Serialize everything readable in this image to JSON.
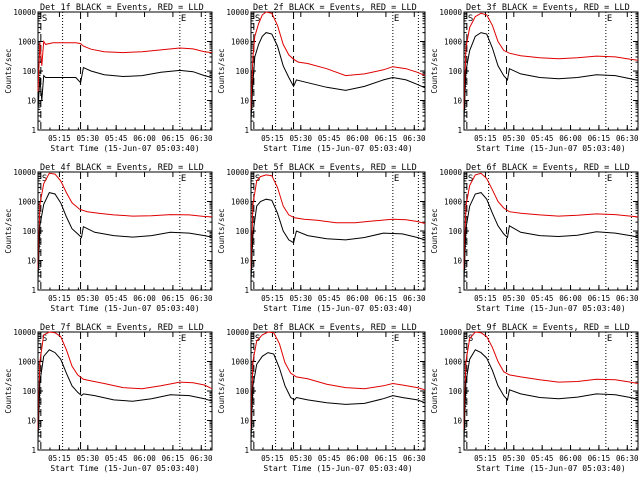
{
  "figure": {
    "start_time_label": "Start Time (15-Jun-07 05:03:40)",
    "ylabel": "Counts/sec",
    "x_tick_labels": [
      "05:15",
      "05:30",
      "05:45",
      "06:00",
      "06:15",
      "06:30"
    ],
    "y_tick_labels": [
      "1",
      "10",
      "100",
      "1000",
      "10000"
    ],
    "marker_top_left": "S",
    "marker_top_right": "E"
  },
  "colors": {
    "events": "#000000",
    "lld": "#e00000"
  },
  "chart_data": [
    {
      "type": "line",
      "title": "Det 1f BLACK = Events, RED = LLD",
      "xlabel": "Start Time (15-Jun-07 05:03:40)",
      "ylabel": "Counts/sec",
      "x_unit": "minutes after 05:03:40",
      "yscale": "log",
      "ylim": [
        1,
        10000
      ],
      "xlim": [
        0,
        92
      ],
      "dashed_lines": [
        1.5,
        22.5
      ],
      "dotted_lines": [
        13,
        75,
        88.5
      ],
      "series": [
        {
          "name": "LLD",
          "x": [
            0,
            1,
            2,
            3,
            4,
            8,
            14,
            20,
            22.5,
            24,
            28,
            35,
            45,
            55,
            65,
            75,
            82,
            88,
            92
          ],
          "y": [
            20,
            900,
            150,
            1000,
            800,
            900,
            900,
            900,
            850,
            700,
            550,
            450,
            420,
            450,
            520,
            600,
            560,
            450,
            420
          ]
        },
        {
          "name": "Events",
          "x": [
            0,
            1,
            2,
            3,
            4,
            8,
            14,
            20,
            22.5,
            24,
            28,
            35,
            45,
            55,
            65,
            75,
            82,
            88,
            92
          ],
          "y": [
            5,
            60,
            10,
            70,
            60,
            60,
            60,
            60,
            40,
            130,
            100,
            75,
            65,
            70,
            90,
            105,
            95,
            70,
            60
          ]
        }
      ]
    },
    {
      "type": "line",
      "title": "Det 2f BLACK = Events, RED = LLD",
      "xlabel": "Start Time (15-Jun-07 05:03:40)",
      "ylabel": "Counts/sec",
      "x_unit": "minutes after 05:03:40",
      "yscale": "log",
      "ylim": [
        1,
        10000
      ],
      "xlim": [
        0,
        92
      ],
      "dashed_lines": [
        1.5,
        22.5
      ],
      "dotted_lines": [
        13,
        75,
        88.5
      ],
      "series": [
        {
          "name": "LLD",
          "x": [
            0,
            1,
            2,
            4,
            6,
            8,
            11,
            14,
            17,
            20,
            22.5,
            25,
            30,
            40,
            50,
            60,
            70,
            75,
            82,
            88,
            92
          ],
          "y": [
            5,
            300,
            1500,
            4000,
            8000,
            10000,
            9000,
            3500,
            800,
            350,
            250,
            200,
            180,
            120,
            70,
            80,
            110,
            140,
            120,
            90,
            70
          ]
        },
        {
          "name": "Events",
          "x": [
            0,
            1,
            2,
            4,
            6,
            8,
            11,
            14,
            17,
            20,
            22.5,
            24,
            30,
            40,
            50,
            60,
            70,
            75,
            82,
            88,
            92
          ],
          "y": [
            2,
            40,
            300,
            800,
            1500,
            2000,
            1800,
            700,
            150,
            60,
            30,
            50,
            40,
            28,
            22,
            30,
            50,
            60,
            50,
            35,
            27
          ]
        }
      ]
    },
    {
      "type": "line",
      "title": "Det 3f BLACK = Events, RED = LLD",
      "xlabel": "Start Time (15-Jun-07 05:03:40)",
      "ylabel": "Counts/sec",
      "x_unit": "minutes after 05:03:40",
      "yscale": "log",
      "ylim": [
        1,
        10000
      ],
      "xlim": [
        0,
        92
      ],
      "dashed_lines": [
        1.5,
        22.5
      ],
      "dotted_lines": [
        13,
        75,
        88.5
      ],
      "series": [
        {
          "name": "LLD",
          "x": [
            0,
            1,
            3,
            6,
            9,
            12,
            15,
            18,
            21,
            24,
            30,
            40,
            50,
            60,
            70,
            80,
            88,
            92
          ],
          "y": [
            5,
            600,
            3000,
            7000,
            9000,
            8000,
            3500,
            1000,
            500,
            400,
            330,
            280,
            260,
            280,
            320,
            300,
            250,
            230
          ]
        },
        {
          "name": "Events",
          "x": [
            0,
            1,
            3,
            6,
            9,
            12,
            15,
            18,
            21,
            23,
            24,
            30,
            40,
            50,
            60,
            70,
            80,
            88,
            92
          ],
          "y": [
            2,
            100,
            500,
            1500,
            2000,
            1800,
            600,
            150,
            70,
            50,
            120,
            80,
            60,
            55,
            60,
            75,
            70,
            55,
            48
          ]
        }
      ]
    },
    {
      "type": "line",
      "title": "Det 4f BLACK = Events, RED = LLD",
      "xlabel": "Start Time (15-Jun-07 05:03:40)",
      "ylabel": "Counts/sec",
      "x_unit": "minutes after 05:03:40",
      "yscale": "log",
      "ylim": [
        1,
        10000
      ],
      "xlim": [
        0,
        92
      ],
      "dashed_lines": [
        1.5,
        22.5
      ],
      "dotted_lines": [
        13,
        75,
        88.5
      ],
      "series": [
        {
          "name": "LLD",
          "x": [
            0,
            1,
            3,
            6,
            9,
            12,
            15,
            18,
            22,
            26,
            32,
            40,
            50,
            60,
            70,
            80,
            88,
            92
          ],
          "y": [
            5,
            800,
            4000,
            9000,
            8500,
            5000,
            2000,
            900,
            550,
            450,
            400,
            350,
            320,
            330,
            360,
            350,
            310,
            300
          ]
        },
        {
          "name": "Events",
          "x": [
            0,
            1,
            3,
            6,
            9,
            12,
            15,
            18,
            21,
            23,
            24,
            30,
            40,
            50,
            60,
            70,
            80,
            88,
            92
          ],
          "y": [
            2,
            150,
            800,
            2000,
            1800,
            900,
            300,
            120,
            80,
            60,
            140,
            90,
            70,
            62,
            70,
            90,
            85,
            70,
            62
          ]
        }
      ]
    },
    {
      "type": "line",
      "title": "Det 5f BLACK = Events, RED = LLD",
      "xlabel": "Start Time (15-Jun-07 05:03:40)",
      "ylabel": "Counts/sec",
      "x_unit": "minutes after 05:03:40",
      "yscale": "log",
      "ylim": [
        1,
        10000
      ],
      "xlim": [
        0,
        92
      ],
      "dashed_lines": [
        1.5,
        22.5
      ],
      "dotted_lines": [
        13,
        75,
        88.5
      ],
      "series": [
        {
          "name": "LLD",
          "x": [
            0,
            1,
            3,
            5,
            8,
            11,
            14,
            17,
            20,
            23,
            28,
            35,
            45,
            55,
            65,
            75,
            82,
            88,
            92
          ],
          "y": [
            5,
            800,
            5000,
            7000,
            8000,
            7500,
            3000,
            700,
            350,
            280,
            250,
            230,
            190,
            190,
            220,
            250,
            240,
            210,
            180
          ]
        },
        {
          "name": "Events",
          "x": [
            0,
            1,
            3,
            5,
            8,
            11,
            14,
            17,
            20,
            22.5,
            24,
            30,
            40,
            50,
            60,
            70,
            80,
            88,
            92
          ],
          "y": [
            2,
            80,
            700,
            1000,
            1200,
            1100,
            400,
            100,
            50,
            40,
            100,
            70,
            55,
            50,
            60,
            85,
            80,
            60,
            50
          ]
        }
      ]
    },
    {
      "type": "line",
      "title": "Det 6f BLACK = Events, RED = LLD",
      "xlabel": "Start Time (15-Jun-07 05:03:40)",
      "ylabel": "Counts/sec",
      "x_unit": "minutes after 05:03:40",
      "yscale": "log",
      "ylim": [
        1,
        10000
      ],
      "xlim": [
        0,
        92
      ],
      "dashed_lines": [
        1.5,
        22.5
      ],
      "dotted_lines": [
        13,
        75,
        88.5
      ],
      "series": [
        {
          "name": "LLD",
          "x": [
            0,
            1,
            3,
            6,
            9,
            12,
            15,
            18,
            21,
            24,
            30,
            40,
            50,
            60,
            70,
            80,
            88,
            92
          ],
          "y": [
            5,
            700,
            3500,
            8000,
            9000,
            6000,
            2500,
            1000,
            600,
            450,
            400,
            350,
            320,
            340,
            380,
            360,
            320,
            300
          ]
        },
        {
          "name": "Events",
          "x": [
            0,
            1,
            3,
            6,
            9,
            12,
            15,
            18,
            21,
            23,
            24,
            30,
            40,
            50,
            60,
            70,
            80,
            88,
            92
          ],
          "y": [
            2,
            120,
            700,
            1800,
            2000,
            1200,
            400,
            150,
            80,
            60,
            150,
            90,
            70,
            65,
            72,
            95,
            85,
            70,
            62
          ]
        }
      ]
    },
    {
      "type": "line",
      "title": "Det 7f BLACK = Events, RED = LLD",
      "xlabel": "Start Time (15-Jun-07 05:03:40)",
      "ylabel": "Counts/sec",
      "x_unit": "minutes after 05:03:40",
      "yscale": "log",
      "ylim": [
        1,
        10000
      ],
      "xlim": [
        0,
        92
      ],
      "dashed_lines": [
        1.5,
        22.5
      ],
      "dotted_lines": [
        13,
        75,
        88.5
      ],
      "series": [
        {
          "name": "LLD",
          "x": [
            0,
            1,
            3,
            6,
            9,
            12,
            15,
            18,
            21,
            24,
            28,
            35,
            45,
            55,
            65,
            75,
            82,
            88,
            92
          ],
          "y": [
            5,
            1000,
            8000,
            10000,
            9500,
            7000,
            2500,
            700,
            350,
            250,
            220,
            180,
            130,
            120,
            150,
            200,
            190,
            160,
            120
          ]
        },
        {
          "name": "Events",
          "x": [
            0,
            1,
            3,
            6,
            9,
            12,
            15,
            18,
            21,
            23,
            24,
            30,
            40,
            50,
            60,
            70,
            80,
            88,
            92
          ],
          "y": [
            2,
            200,
            1500,
            2500,
            2000,
            1200,
            400,
            150,
            90,
            70,
            80,
            70,
            50,
            45,
            55,
            75,
            70,
            55,
            45
          ]
        }
      ]
    },
    {
      "type": "line",
      "title": "Det 8f BLACK = Events, RED = LLD",
      "xlabel": "Start Time (15-Jun-07 05:03:40)",
      "ylabel": "Counts/sec",
      "x_unit": "minutes after 05:03:40",
      "yscale": "log",
      "ylim": [
        1,
        10000
      ],
      "xlim": [
        0,
        92
      ],
      "dashed_lines": [
        1.5,
        22.5
      ],
      "dotted_lines": [
        13,
        75,
        88.5
      ],
      "series": [
        {
          "name": "LLD",
          "x": [
            0,
            1,
            3,
            6,
            9,
            12,
            15,
            18,
            21,
            24,
            30,
            40,
            50,
            60,
            70,
            75,
            80,
            88,
            92
          ],
          "y": [
            5,
            1000,
            5000,
            8000,
            10000,
            9500,
            4000,
            900,
            400,
            300,
            260,
            170,
            130,
            120,
            150,
            180,
            160,
            130,
            110
          ]
        },
        {
          "name": "Events",
          "x": [
            0,
            1,
            3,
            6,
            9,
            12,
            15,
            18,
            21,
            23,
            24,
            30,
            40,
            50,
            60,
            70,
            75,
            80,
            88,
            92
          ],
          "y": [
            2,
            150,
            800,
            1500,
            2000,
            1800,
            600,
            150,
            60,
            50,
            60,
            50,
            40,
            35,
            38,
            55,
            70,
            60,
            50,
            40
          ]
        }
      ]
    },
    {
      "type": "line",
      "title": "Det 9f BLACK = Events, RED = LLD",
      "xlabel": "Start Time (15-Jun-07 05:03:40)",
      "ylabel": "Counts/sec",
      "x_unit": "minutes after 05:03:40",
      "yscale": "log",
      "ylim": [
        1,
        10000
      ],
      "xlim": [
        0,
        92
      ],
      "dashed_lines": [
        1.5,
        22.5
      ],
      "dotted_lines": [
        13,
        75,
        88.5
      ],
      "series": [
        {
          "name": "LLD",
          "x": [
            0,
            1,
            3,
            6,
            9,
            12,
            15,
            18,
            21,
            24,
            30,
            40,
            50,
            60,
            70,
            80,
            88,
            92
          ],
          "y": [
            5,
            1000,
            6000,
            10000,
            9500,
            7000,
            3000,
            1000,
            450,
            350,
            300,
            240,
            200,
            210,
            250,
            240,
            200,
            180
          ]
        },
        {
          "name": "Events",
          "x": [
            0,
            1,
            3,
            6,
            9,
            12,
            15,
            18,
            21,
            23,
            24,
            30,
            40,
            50,
            60,
            70,
            80,
            88,
            92
          ],
          "y": [
            2,
            200,
            1200,
            2500,
            2000,
            1300,
            500,
            150,
            70,
            50,
            110,
            80,
            60,
            55,
            62,
            80,
            75,
            60,
            52
          ]
        }
      ]
    }
  ]
}
